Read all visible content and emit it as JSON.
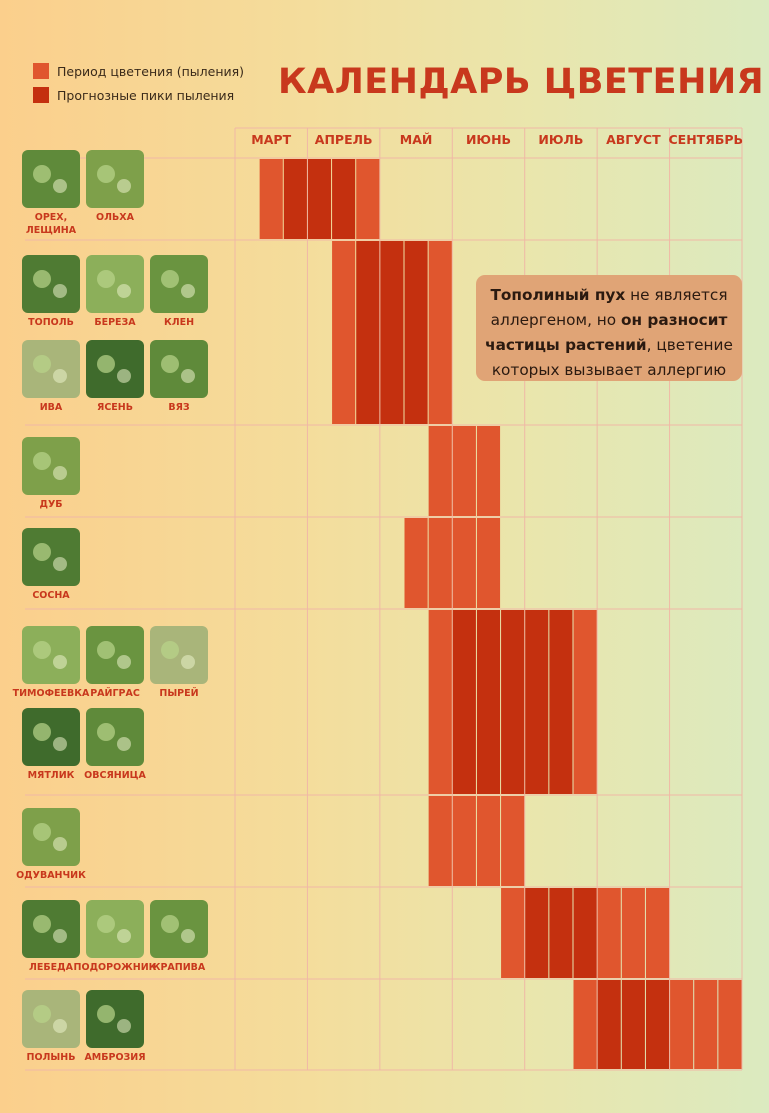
{
  "legend": {
    "period_label": "Период цветения (пыления)",
    "peak_label": "Прогнозные пики пыления"
  },
  "title": "КАЛЕНДАРЬ ЦВЕТЕНИЯ",
  "note": {
    "p1": "Тополиный пух",
    "p2": " не является аллергеном, но ",
    "p3": "он разносит частицы растений",
    "p4": ", цветение которых вызывает аллергию"
  },
  "colors": {
    "period": "#e0562e",
    "peak": "#c4300f",
    "grid": "#f0b8a6",
    "accent": "#c8381d",
    "note_bg": "#e0a476"
  },
  "chart_data": {
    "type": "table",
    "title": "КАЛЕНДАРЬ ЦВЕТЕНИЯ",
    "months": [
      "МАРТ",
      "АПРЕЛЬ",
      "МАЙ",
      "ИЮНЬ",
      "ИЮЛЬ",
      "АВГУСТ",
      "СЕНТЯБРЬ"
    ],
    "legend": [
      "Период цветения (пыления)",
      "Прогнозные пики пыления"
    ],
    "groups": [
      {
        "plants": [
          [
            "ОРЕХ,",
            "ЛЕЩИНА"
          ],
          [
            "ОЛЬХА"
          ]
        ],
        "cells": [
          {
            "col": 1,
            "peak": false
          },
          {
            "col": 2,
            "peak": true
          },
          {
            "col": 3,
            "peak": true
          },
          {
            "col": 4,
            "peak": true
          },
          {
            "col": 5,
            "peak": false
          }
        ]
      },
      {
        "plants": [
          [
            "ТОПОЛЬ"
          ],
          [
            "БЕРЕЗА"
          ],
          [
            "КЛЕН"
          ],
          [
            "ИВА"
          ],
          [
            "ЯСЕНЬ"
          ],
          [
            "ВЯЗ"
          ]
        ],
        "cells": [
          {
            "col": 4,
            "peak": false
          },
          {
            "col": 5,
            "peak": true
          },
          {
            "col": 6,
            "peak": true
          },
          {
            "col": 7,
            "peak": true
          },
          {
            "col": 8,
            "peak": false
          }
        ]
      },
      {
        "plants": [
          [
            "ДУБ"
          ]
        ],
        "cells": [
          {
            "col": 8,
            "peak": false
          },
          {
            "col": 9,
            "peak": false
          },
          {
            "col": 10,
            "peak": false
          }
        ]
      },
      {
        "plants": [
          [
            "СОСНА"
          ]
        ],
        "cells": [
          {
            "col": 7,
            "peak": false
          },
          {
            "col": 8,
            "peak": false
          },
          {
            "col": 9,
            "peak": false
          },
          {
            "col": 10,
            "peak": false
          }
        ]
      },
      {
        "plants": [
          [
            "ТИМОФЕЕВКА"
          ],
          [
            "РАЙГРАС"
          ],
          [
            "ПЫРЕЙ"
          ],
          [
            "МЯТЛИК"
          ],
          [
            "ОВСЯНИЦА"
          ]
        ],
        "cells": [
          {
            "col": 8,
            "peak": false
          },
          {
            "col": 9,
            "peak": true
          },
          {
            "col": 10,
            "peak": true
          },
          {
            "col": 11,
            "peak": true
          },
          {
            "col": 12,
            "peak": true
          },
          {
            "col": 13,
            "peak": true
          },
          {
            "col": 14,
            "peak": false
          }
        ]
      },
      {
        "plants": [
          [
            "ОДУВАНЧИК"
          ]
        ],
        "cells": [
          {
            "col": 8,
            "peak": false
          },
          {
            "col": 9,
            "peak": false
          },
          {
            "col": 10,
            "peak": false
          },
          {
            "col": 11,
            "peak": false
          }
        ]
      },
      {
        "plants": [
          [
            "ЛЕБЕДА"
          ],
          [
            "ПОДОРОЖНИК"
          ],
          [
            "КРАПИВА"
          ]
        ],
        "cells": [
          {
            "col": 11,
            "peak": false
          },
          {
            "col": 12,
            "peak": true
          },
          {
            "col": 13,
            "peak": true
          },
          {
            "col": 14,
            "peak": true
          },
          {
            "col": 15,
            "peak": false
          },
          {
            "col": 16,
            "peak": false
          },
          {
            "col": 17,
            "peak": false
          }
        ]
      },
      {
        "plants": [
          [
            "ПОЛЫНЬ"
          ],
          [
            "АМБРОЗИЯ"
          ]
        ],
        "cells": [
          {
            "col": 14,
            "peak": false
          },
          {
            "col": 15,
            "peak": true
          },
          {
            "col": 16,
            "peak": true
          },
          {
            "col": 17,
            "peak": true
          },
          {
            "col": 18,
            "peak": false
          },
          {
            "col": 19,
            "peak": false
          },
          {
            "col": 20,
            "peak": false
          }
        ]
      }
    ]
  }
}
